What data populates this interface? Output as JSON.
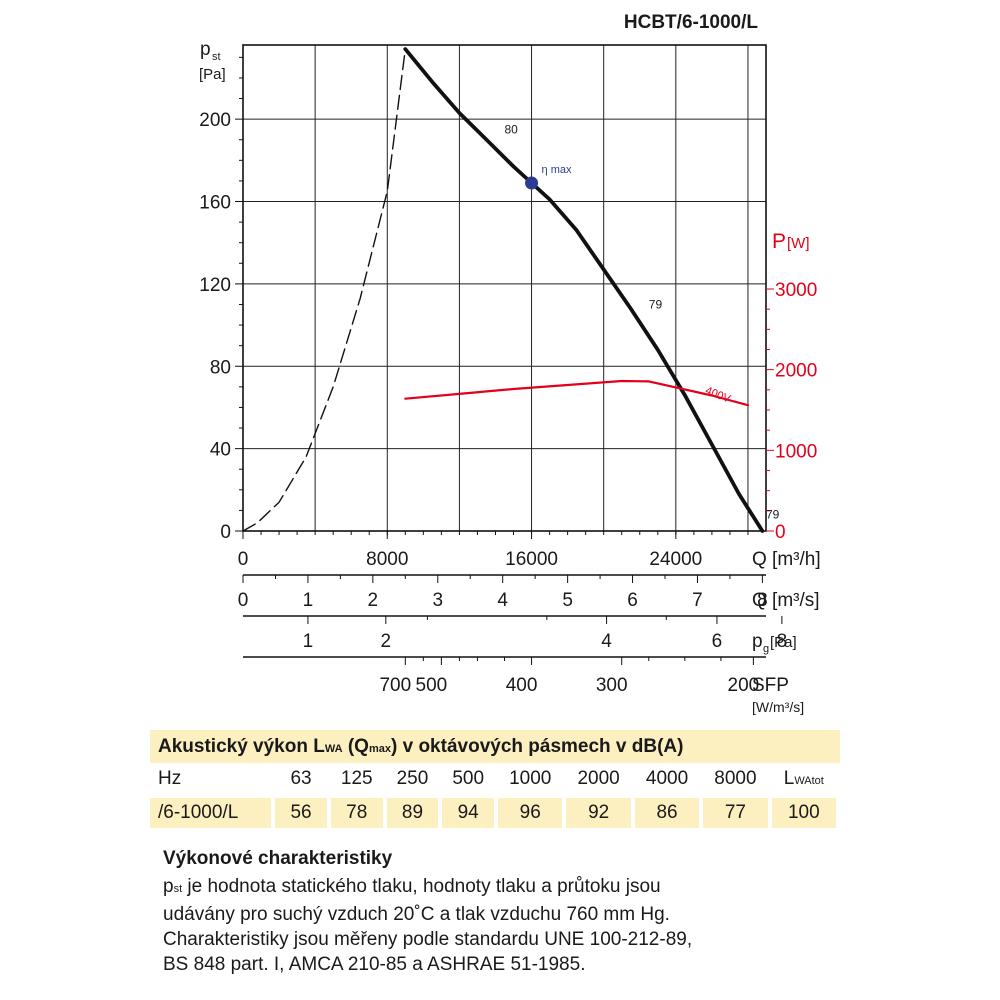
{
  "header": {
    "model": "HCBT/6-1000/L"
  },
  "chart_data": {
    "type": "line",
    "title": "HCBT/6-1000/L",
    "axes": {
      "left": {
        "label_main": "p",
        "label_sub": "st",
        "unit": "[Pa]",
        "ticks": [
          0,
          40,
          80,
          120,
          160,
          200
        ],
        "range": [
          0,
          236
        ]
      },
      "right": {
        "label_main": "P",
        "unit": "[W]",
        "ticks": [
          0,
          1000,
          2000,
          3000
        ],
        "range": [
          0,
          3000
        ],
        "color": "#e3001b"
      },
      "x_m3h": {
        "label": "Q [m³/h]",
        "ticks": [
          0,
          8000,
          16000,
          24000
        ],
        "range": [
          0,
          29000
        ]
      },
      "x_m3s": {
        "label": "Q [m³/s]",
        "ticks": [
          0,
          1,
          2,
          3,
          4,
          5,
          6,
          7,
          8
        ]
      },
      "x_pg": {
        "label_main": "p",
        "label_sub": "g",
        "unit": "[Pa]",
        "ticks": [
          "1",
          "2",
          "4",
          "6",
          "8"
        ]
      },
      "x_sfp": {
        "label": "SFP",
        "unit": "[W/m³/s]",
        "ticks": [
          "700",
          "500",
          "400",
          "300",
          "200"
        ]
      }
    },
    "grid": true,
    "series": [
      {
        "name": "pst",
        "x": [
          9000,
          10500,
          12000,
          13500,
          15000,
          16000,
          17000,
          18500,
          20000,
          21500,
          23000,
          24500,
          26000,
          27500,
          28800
        ],
        "y": [
          234,
          218,
          203,
          190,
          177,
          169,
          161,
          146,
          127,
          108,
          88,
          66,
          42,
          18,
          0
        ],
        "color": "#111111"
      },
      {
        "name": "pst-unstable",
        "x": [
          0,
          800,
          2000,
          3500,
          5000,
          6500,
          8000,
          9000
        ],
        "y": [
          0,
          4,
          14,
          36,
          70,
          113,
          165,
          234
        ],
        "color": "#111111",
        "dashed": true
      },
      {
        "name": "400V",
        "axis": "right",
        "x": [
          9000,
          12000,
          15000,
          18000,
          21000,
          22500,
          24000,
          26000,
          28000
        ],
        "y": [
          1640,
          1700,
          1760,
          1810,
          1860,
          1855,
          1780,
          1680,
          1560
        ],
        "color": "#e3001b"
      }
    ],
    "marker": {
      "label": "η max",
      "x": 16000,
      "y": 169,
      "color": "#2b3a94"
    },
    "annotations": [
      {
        "text": "80",
        "x": 14500,
        "y": 193
      },
      {
        "text": "79",
        "x": 22500,
        "y": 108
      },
      {
        "text": "79",
        "x": 29000,
        "y": 6
      }
    ],
    "pg_ticks_q": [
      1,
      2.2,
      5.6,
      7.3,
      8.3
    ],
    "sfp_ticks_q": [
      9000,
      11000,
      16000,
      21000,
      28300
    ]
  },
  "acoustic": {
    "title_parts": [
      "Akustický výkon L",
      "WA",
      " (Q",
      "max",
      ") v oktávových pásmech v dB(A)"
    ],
    "header_row": [
      "Hz",
      "63",
      "125",
      "250",
      "500",
      "1000",
      "2000",
      "4000",
      "8000"
    ],
    "total_label_main": "L",
    "total_label_sub": "WAtot",
    "value_row": [
      "/6-1000/L",
      "56",
      "78",
      "89",
      "94",
      "96",
      "92",
      "86",
      "77",
      "100"
    ]
  },
  "performance": {
    "title": "Výkonové charakteristiky",
    "line1_main": "p",
    "line1_sub": "st",
    "line1_rest": " je hodnota statického tlaku, hodnoty tlaku a průtoku jsou",
    "line2": "udávány pro suchý vzduch 20˚C a tlak vzduchu 760 mm Hg.",
    "line3": "Charakteristiky jsou měřeny podle standardu UNE 100-212-89,",
    "line4": "BS 848 part. I, AMCA 210-85 a ASHRAE 51-1985."
  }
}
